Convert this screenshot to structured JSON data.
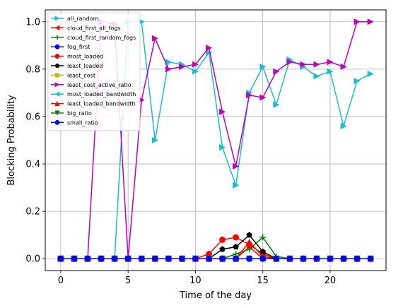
{
  "chart_data": {
    "type": "line",
    "xlabel": "Time of the day",
    "ylabel": "Blocking Probability",
    "xlim": [
      -1.15,
      24.15
    ],
    "ylim": [
      -0.05,
      1.05
    ],
    "xticks": [
      0,
      5,
      10,
      15,
      20
    ],
    "yticks": [
      0.0,
      0.2,
      0.4,
      0.6,
      0.8,
      1.0
    ],
    "xtick_labels": [
      "0",
      "5",
      "10",
      "15",
      "20"
    ],
    "ytick_labels": [
      "0.0",
      "0.2",
      "0.4",
      "0.6",
      "0.8",
      "1.0"
    ],
    "grid": true,
    "legend_position": "top-left",
    "x": [
      0,
      1,
      2,
      3,
      4,
      5,
      6,
      7,
      8,
      9,
      10,
      11,
      12,
      13,
      14,
      15,
      16,
      17,
      18,
      19,
      20,
      21,
      22,
      23
    ],
    "series": [
      {
        "name": "all_random",
        "color": "#17becf",
        "marker": "triangle-right",
        "values": [
          0,
          0,
          0,
          0,
          0,
          1.0,
          1.0,
          0.5,
          0.83,
          0.82,
          0.79,
          0.87,
          0.47,
          0.31,
          0.7,
          0.81,
          0.65,
          0.84,
          0.81,
          0.77,
          0.79,
          0.56,
          0.75,
          0.78
        ]
      },
      {
        "name": "cloud_first_all_fogs",
        "color": "#ff0000",
        "marker": "triangle-left",
        "values": [
          0,
          0,
          0,
          0,
          0,
          0,
          0,
          0,
          0,
          0,
          0,
          0,
          0,
          0,
          0.05,
          0,
          0,
          0,
          0,
          0,
          0,
          0,
          0,
          0
        ]
      },
      {
        "name": "cloud_first_random_fogs",
        "color": "#008000",
        "marker": "plus",
        "values": [
          0,
          0,
          0,
          0,
          0,
          0,
          0,
          0,
          0,
          0,
          0,
          0,
          0,
          0.02,
          0.04,
          0.09,
          0.01,
          0,
          0,
          0,
          0,
          0,
          0,
          0
        ]
      },
      {
        "name": "fog_first",
        "color": "#0000ff",
        "marker": "circle",
        "values": [
          0,
          0,
          0,
          0,
          0,
          0,
          0,
          0,
          0,
          0,
          0,
          0,
          0,
          0,
          0,
          0,
          0,
          0,
          0,
          0,
          0,
          0,
          0,
          0
        ]
      },
      {
        "name": "most_loaded",
        "color": "#ff0000",
        "marker": "circle",
        "values": [
          0,
          0,
          0,
          0,
          0,
          0,
          0,
          0,
          0,
          0,
          0,
          0.02,
          0.08,
          0.09,
          0.06,
          0.02,
          0,
          0,
          0,
          0,
          0,
          0,
          0,
          0
        ]
      },
      {
        "name": "least_loaded",
        "color": "#000000",
        "marker": "pentagon",
        "values": [
          0,
          0,
          0,
          0,
          0,
          0,
          0,
          0,
          0,
          0,
          0,
          0,
          0.04,
          0.05,
          0.1,
          0.03,
          0,
          0,
          0,
          0,
          0,
          0,
          0,
          0
        ]
      },
      {
        "name": "least_cost",
        "color": "#bfbf00",
        "marker": "square",
        "values": [
          0,
          0,
          0,
          0,
          0,
          0,
          0,
          0,
          0,
          0,
          0,
          0,
          0,
          0,
          0,
          0,
          0,
          0,
          0,
          0,
          0,
          0,
          0,
          0
        ]
      },
      {
        "name": "least_cost_active_ratio",
        "color": "#bf00bf",
        "marker": "triangle-right",
        "values": [
          0,
          0,
          0,
          1.0,
          0.99,
          0,
          0.67,
          0.93,
          0.8,
          0.81,
          0.82,
          0.89,
          0.62,
          0.39,
          0.69,
          0.68,
          0.79,
          0.83,
          0.82,
          0.82,
          0.83,
          0.81,
          1.0,
          1.0
        ]
      },
      {
        "name": "most_loaded_bandwidth",
        "color": "#17becf",
        "marker": "triangle-left",
        "values": [
          0,
          0,
          0,
          0,
          0,
          0,
          0,
          0,
          0,
          0,
          0,
          0,
          0,
          0,
          0,
          0,
          0,
          0,
          0,
          0,
          0,
          0,
          0,
          0
        ]
      },
      {
        "name": "least_loaded_bandwidth",
        "color": "#ff0000",
        "marker": "triangle-up",
        "values": [
          0,
          0,
          0,
          0,
          0,
          0,
          0,
          0,
          0,
          0,
          0,
          0,
          0,
          0,
          0.07,
          0.01,
          0,
          0,
          0,
          0,
          0,
          0,
          0,
          0
        ]
      },
      {
        "name": "big_ratio",
        "color": "#008000",
        "marker": "triangle-down",
        "values": [
          0,
          0,
          0,
          0,
          0,
          0,
          0,
          0,
          0,
          0,
          0,
          0,
          0,
          0,
          0,
          0,
          0,
          0,
          0,
          0,
          0,
          0,
          0,
          0
        ]
      },
      {
        "name": "small_ratio",
        "color": "#0000ff",
        "marker": "circle",
        "values": [
          0,
          0,
          0,
          0,
          0,
          0,
          0,
          0,
          0,
          0,
          0,
          0,
          0,
          0,
          0,
          0,
          0,
          0,
          0,
          0,
          0,
          0,
          0,
          0
        ]
      }
    ]
  }
}
